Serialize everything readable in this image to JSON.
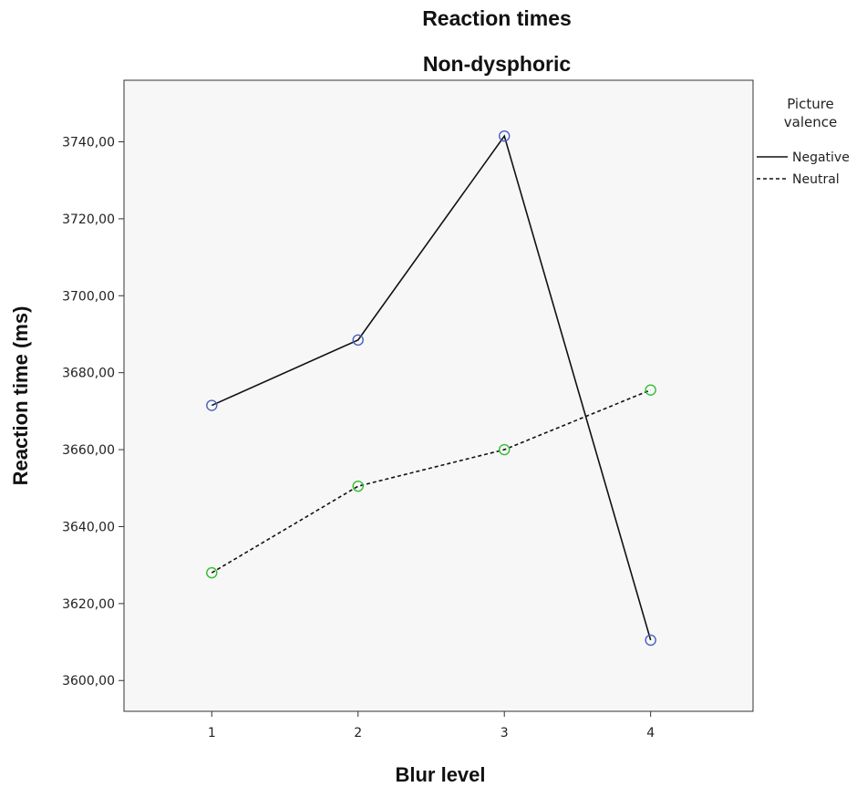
{
  "chart_data": {
    "type": "line",
    "title": "Reaction times",
    "subtitle": "Non-dysphoric",
    "xlabel": "Blur level",
    "ylabel": "Reaction time (ms)",
    "x": [
      1,
      2,
      3,
      4
    ],
    "x_tick_labels": [
      "1",
      "2",
      "3",
      "4"
    ],
    "xlim": [
      0.4,
      4.7
    ],
    "ylim": [
      3592,
      3756
    ],
    "y_ticks": [
      3600,
      3620,
      3640,
      3660,
      3680,
      3700,
      3720,
      3740
    ],
    "y_tick_labels": [
      "3600,00",
      "3620,00",
      "3640,00",
      "3660,00",
      "3680,00",
      "3700,00",
      "3720,00",
      "3740,00"
    ],
    "grid": false,
    "legend": {
      "title_line1": "Picture",
      "title_line2": "valence",
      "placement": "right"
    },
    "series": [
      {
        "name": "Negative",
        "values": [
          3671.5,
          3688.5,
          3741.5,
          3610.5
        ],
        "line_style": "solid",
        "marker_color": "#4a5fc1"
      },
      {
        "name": "Neutral",
        "values": [
          3628,
          3650.5,
          3660,
          3675.5
        ],
        "line_style": "dashed",
        "marker_color": "#2fbf2f"
      }
    ],
    "colors": {
      "line": "#111111",
      "plot_background": "#f7f7f7"
    }
  }
}
